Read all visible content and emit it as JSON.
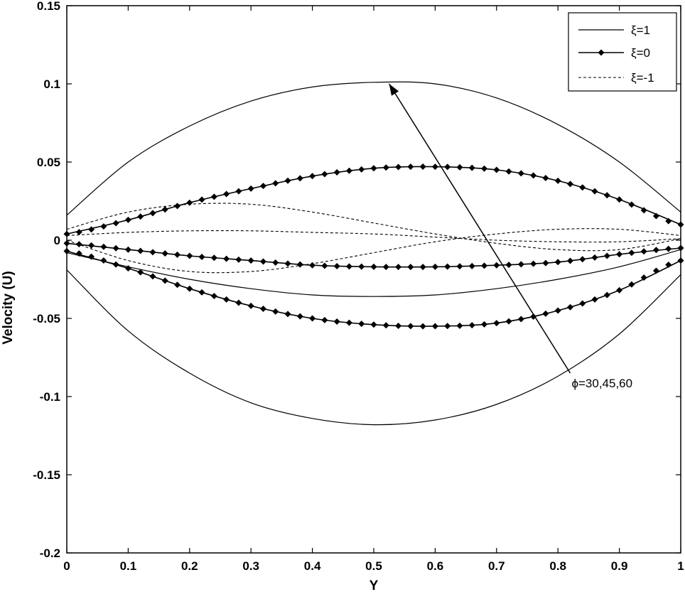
{
  "chart_data": {
    "type": "line",
    "title": "",
    "xlabel": "Y",
    "ylabel": "Velocity (U)",
    "xlim": [
      0,
      1
    ],
    "ylim": [
      -0.2,
      0.15
    ],
    "xticks": [
      0,
      0.1,
      0.2,
      0.3,
      0.4,
      0.5,
      0.6,
      0.7,
      0.8,
      0.9,
      1
    ],
    "xtick_labels": [
      "0",
      "0.1",
      "0.2",
      "0.3",
      "0.4",
      "0.5",
      "0.6",
      "0.7",
      "0.8",
      "0.9",
      "1"
    ],
    "yticks": [
      -0.2,
      -0.15,
      -0.1,
      -0.05,
      0,
      0.05,
      0.1,
      0.15
    ],
    "ytick_labels": [
      "-0.2",
      "-0.15",
      "-0.1",
      "-0.05",
      "0",
      "0.05",
      "0.1",
      "0.15"
    ],
    "grid": false,
    "legend_position": "top-right",
    "legend": [
      {
        "label": "ξ=1",
        "style": "solid"
      },
      {
        "label": "ξ=0",
        "style": "solid-marker"
      },
      {
        "label": "ξ=-1",
        "style": "dashed"
      }
    ],
    "series": [
      {
        "style": "solid",
        "x": [
          0,
          0.1,
          0.2,
          0.3,
          0.4,
          0.5,
          0.6,
          0.7,
          0.8,
          0.9,
          1
        ],
        "y": [
          0.016,
          0.05,
          0.073,
          0.089,
          0.098,
          0.101,
          0.1,
          0.091,
          0.074,
          0.05,
          0.018
        ]
      },
      {
        "style": "solid",
        "x": [
          0,
          0.1,
          0.2,
          0.3,
          0.4,
          0.5,
          0.6,
          0.7,
          0.8,
          0.9,
          1
        ],
        "y": [
          -0.008,
          -0.017,
          -0.025,
          -0.031,
          -0.035,
          -0.036,
          -0.035,
          -0.031,
          -0.025,
          -0.017,
          -0.006
        ]
      },
      {
        "style": "solid",
        "x": [
          0,
          0.1,
          0.2,
          0.3,
          0.4,
          0.5,
          0.6,
          0.7,
          0.8,
          0.9,
          1
        ],
        "y": [
          -0.019,
          -0.058,
          -0.085,
          -0.104,
          -0.114,
          -0.118,
          -0.115,
          -0.105,
          -0.087,
          -0.06,
          -0.022
        ]
      },
      {
        "style": "solid-marker",
        "x": [
          0,
          0.1,
          0.2,
          0.3,
          0.4,
          0.5,
          0.6,
          0.7,
          0.8,
          0.9,
          1
        ],
        "y": [
          0.004,
          0.013,
          0.024,
          0.033,
          0.041,
          0.046,
          0.047,
          0.045,
          0.038,
          0.026,
          0.01
        ]
      },
      {
        "style": "solid-marker",
        "x": [
          0,
          0.1,
          0.2,
          0.3,
          0.4,
          0.5,
          0.6,
          0.7,
          0.8,
          0.9,
          1
        ],
        "y": [
          -0.002,
          -0.006,
          -0.01,
          -0.013,
          -0.016,
          -0.017,
          -0.017,
          -0.016,
          -0.014,
          -0.009,
          -0.005
        ]
      },
      {
        "style": "solid-marker",
        "x": [
          0,
          0.1,
          0.2,
          0.3,
          0.4,
          0.5,
          0.6,
          0.7,
          0.8,
          0.9,
          1
        ],
        "y": [
          -0.007,
          -0.018,
          -0.031,
          -0.042,
          -0.05,
          -0.054,
          -0.055,
          -0.053,
          -0.045,
          -0.032,
          -0.013
        ]
      },
      {
        "style": "dashed",
        "x": [
          0,
          0.1,
          0.2,
          0.3,
          0.4,
          0.5,
          0.6,
          0.7,
          0.8,
          0.9,
          1
        ],
        "y": [
          0.007,
          0.018,
          0.023,
          0.023,
          0.018,
          0.011,
          0.004,
          -0.002,
          -0.006,
          -0.006,
          0.001
        ]
      },
      {
        "style": "dashed",
        "x": [
          0,
          0.1,
          0.2,
          0.3,
          0.4,
          0.5,
          0.6,
          0.7,
          0.8,
          0.9,
          1
        ],
        "y": [
          0.003,
          0.005,
          0.006,
          0.006,
          0.005,
          0.004,
          0.002,
          0.0,
          -0.001,
          -0.001,
          0.001
        ]
      },
      {
        "style": "dashed",
        "x": [
          0,
          0.1,
          0.2,
          0.3,
          0.4,
          0.5,
          0.6,
          0.7,
          0.8,
          0.9,
          1
        ],
        "y": [
          0.0,
          -0.013,
          -0.02,
          -0.02,
          -0.015,
          -0.008,
          -0.001,
          0.004,
          0.007,
          0.007,
          0.003
        ]
      }
    ],
    "annotations": [
      {
        "text": "ϕ=30,45,60",
        "arrow_from": [
          0.82,
          -0.085
        ],
        "arrow_to": [
          0.525,
          0.1
        ]
      }
    ]
  }
}
